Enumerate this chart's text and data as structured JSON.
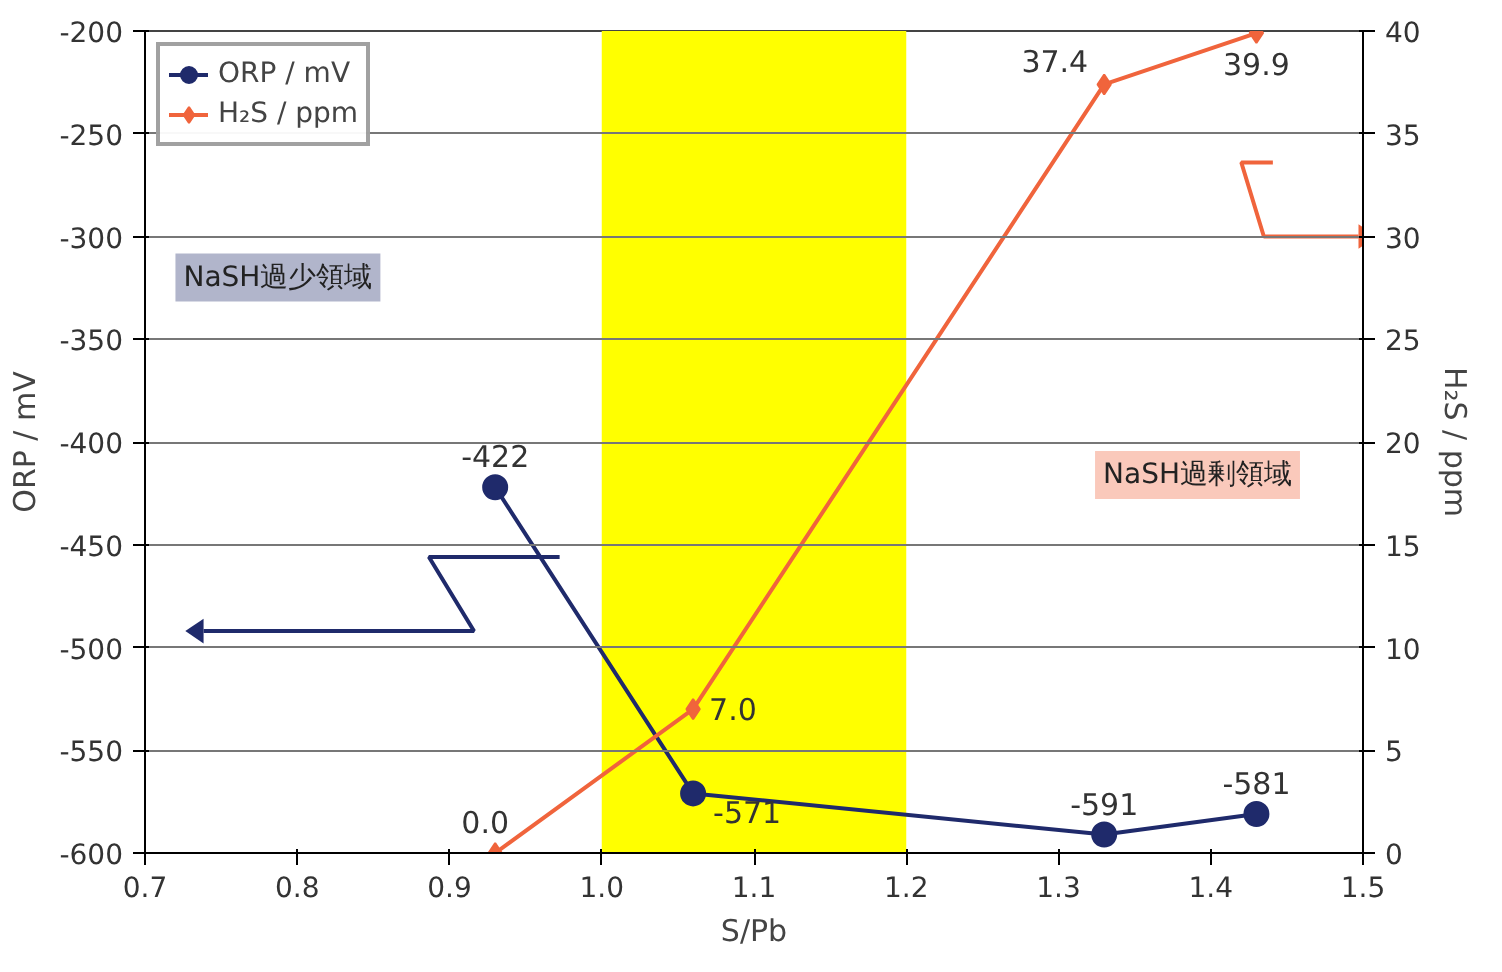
{
  "chart_data": {
    "type": "line",
    "xlabel": "S/Pb",
    "ylabel": "ORP / mV",
    "y2label": "H₂S / ppm",
    "xlim": [
      0.7,
      1.5
    ],
    "xticks": [
      {
        "value": 0.7,
        "label": "0.7"
      },
      {
        "value": 0.8,
        "label": "0.8"
      },
      {
        "value": 0.9,
        "label": "0.9"
      },
      {
        "value": 1.0,
        "label": "1.0"
      },
      {
        "value": 1.1,
        "label": "1.1"
      },
      {
        "value": 1.2,
        "label": "1.2"
      },
      {
        "value": 1.3,
        "label": "1.3"
      },
      {
        "value": 1.4,
        "label": "1.4"
      },
      {
        "value": 1.5,
        "label": "1.5"
      }
    ],
    "ylim": [
      -600,
      -200
    ],
    "yticks": [
      -600,
      -550,
      -500,
      -450,
      -400,
      -350,
      -300,
      -250,
      -200
    ],
    "y2lim": [
      0,
      40
    ],
    "y2ticks": [
      0,
      5,
      10,
      15,
      20,
      25,
      30,
      35,
      40
    ],
    "x": [
      0.93,
      1.06,
      1.33,
      1.43
    ],
    "series": [
      {
        "name": "ORP / mV",
        "color": "#1f2a6b",
        "marker": "circle",
        "values": [
          -422,
          -571,
          -591,
          -581
        ],
        "value_labels": [
          "-422",
          "-571",
          "-591",
          "-581"
        ]
      },
      {
        "name": "H₂S / ppm",
        "color": "#f0643c",
        "marker": "diamond",
        "axis": "y2",
        "values": [
          0,
          7,
          37.4,
          39.9
        ],
        "value_labels": [
          "0.0",
          "7.0",
          "37.4",
          "39.9"
        ]
      }
    ],
    "bands": [
      {
        "axis": "x",
        "from": 1.0,
        "to": 1.2,
        "color": "#ffff00"
      }
    ],
    "annotations": [
      {
        "text": "NaSH過少領域"
      },
      {
        "text": "NaSH過剰領域"
      }
    ],
    "grid": "y",
    "legend": "top left"
  }
}
